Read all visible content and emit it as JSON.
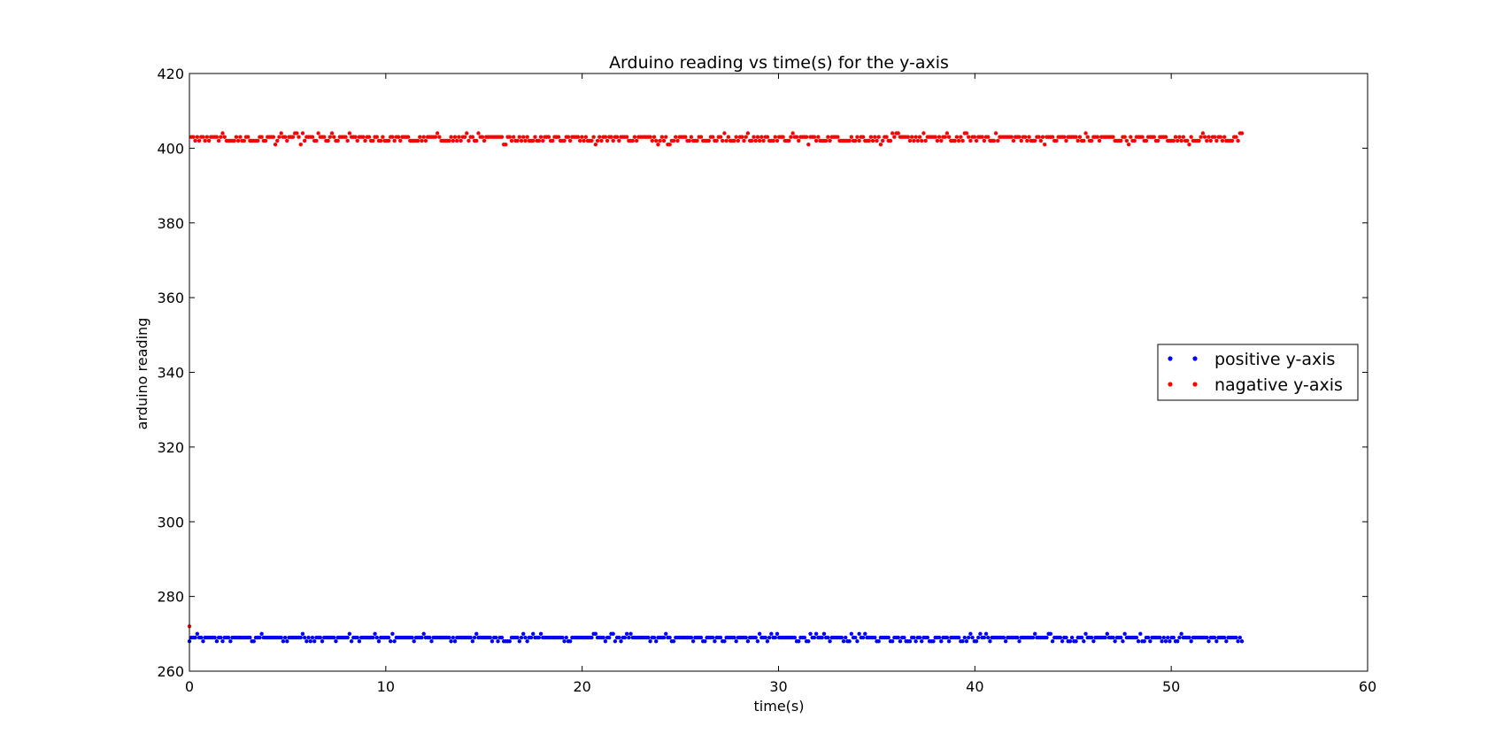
{
  "chart_data": {
    "type": "scatter",
    "title": "Arduino reading vs time(s) for the y-axis",
    "xlabel": "time(s)",
    "ylabel": "arduino reading",
    "xlim": [
      0,
      60
    ],
    "ylim": [
      260,
      420
    ],
    "xticks": [
      0,
      10,
      20,
      30,
      40,
      50,
      60
    ],
    "yticks": [
      260,
      280,
      300,
      320,
      340,
      360,
      380,
      400,
      420
    ],
    "xtick_labels": [
      "0",
      "10",
      "20",
      "30",
      "40",
      "50",
      "60"
    ],
    "ytick_labels": [
      "260",
      "280",
      "300",
      "320",
      "340",
      "360",
      "380",
      "400",
      "420"
    ],
    "grid": false,
    "legend_position": "center-right",
    "x": {
      "start": 0,
      "end": 53.6,
      "count": 540
    },
    "series": [
      {
        "name": "positive y-axis",
        "color": "#0000ff",
        "baseline": 269,
        "levels": [
          268,
          269,
          270
        ],
        "weights": [
          0.22,
          0.7,
          0.08
        ],
        "first_value": 268
      },
      {
        "name": "nagative y-axis",
        "color": "#ff0000",
        "baseline": 403,
        "levels": [
          401,
          402,
          403,
          404
        ],
        "weights": [
          0.02,
          0.42,
          0.5,
          0.06
        ],
        "first_value": 272
      }
    ]
  }
}
